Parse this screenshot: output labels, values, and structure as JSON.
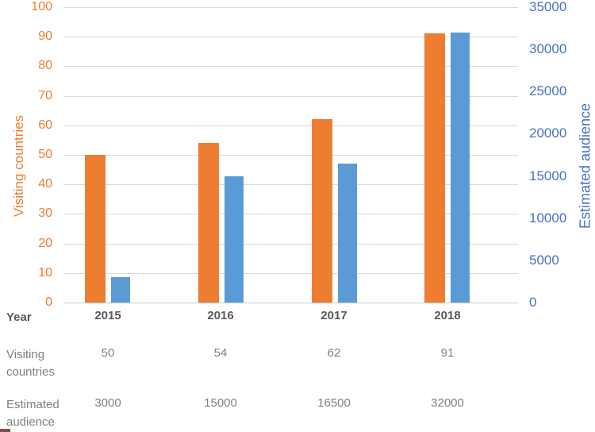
{
  "chart_data": {
    "type": "bar",
    "categories": [
      "2015",
      "2016",
      "2017",
      "2018"
    ],
    "series": [
      {
        "name": "Visiting countries",
        "axis": "left",
        "color": "#ED7D31",
        "values": [
          50,
          54,
          62,
          91
        ]
      },
      {
        "name": "Estimated audience",
        "axis": "right",
        "color": "#5B9BD5",
        "values": [
          3000,
          15000,
          16500,
          32000
        ]
      }
    ],
    "left_axis": {
      "title": "Visiting countries",
      "min": 0,
      "max": 100,
      "step": 10,
      "ticks": [
        0,
        10,
        20,
        30,
        40,
        50,
        60,
        70,
        80,
        90,
        100
      ],
      "text_color": "#ED7D31"
    },
    "right_axis": {
      "title": "Estimated audience",
      "min": 0,
      "max": 35000,
      "step": 5000,
      "ticks": [
        0,
        5000,
        10000,
        15000,
        20000,
        25000,
        30000,
        35000
      ],
      "text_color": "#4472C4"
    },
    "grid": true,
    "legend": "none"
  },
  "table": {
    "rows": [
      {
        "label": "Year",
        "values": [
          "2015",
          "2016",
          "2017",
          "2018"
        ],
        "bold": true
      },
      {
        "label": "Visiting countries",
        "values": [
          "50",
          "54",
          "62",
          "91"
        ],
        "bold": false
      },
      {
        "label": "Estimated audience",
        "values": [
          "3000",
          "15000",
          "16500",
          "32000"
        ],
        "bold": false
      }
    ]
  },
  "colors": {
    "orange": "#ED7D31",
    "blue_bar": "#5B9BD5",
    "blue_text": "#4472C4",
    "gridline": "#D9D9D9",
    "table_header_text": "#595959",
    "table_body_text": "#7F7F7F"
  }
}
